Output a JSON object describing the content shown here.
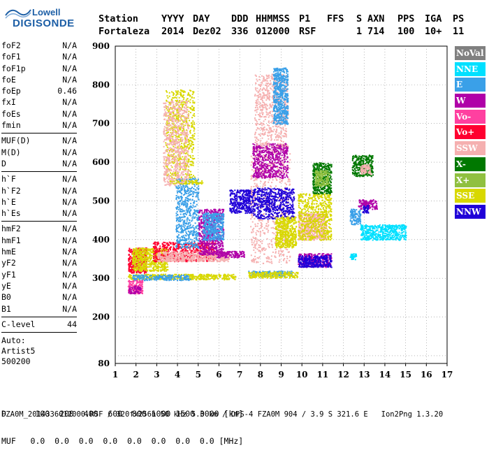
{
  "logo": {
    "line1": "Lowell",
    "line2": "DIGISONDE"
  },
  "header": {
    "labels": [
      "Station",
      "YYYY",
      "DAY",
      "DDD",
      "HHMMSS",
      "P1",
      "FFS",
      "S",
      "AXN",
      "PPS",
      "IGA",
      "PS"
    ],
    "values": [
      "Fortaleza",
      "2014",
      "Dez02",
      "336",
      "012000",
      "RSF",
      "",
      "1",
      "714",
      "100",
      "10+",
      "11"
    ]
  },
  "params_group1": [
    {
      "name": "foF2",
      "value": "N/A"
    },
    {
      "name": "foF1",
      "value": "N/A"
    },
    {
      "name": "foF1p",
      "value": "N/A"
    },
    {
      "name": "foE",
      "value": "N/A"
    },
    {
      "name": "foEp",
      "value": "0.46"
    },
    {
      "name": "fxI",
      "value": "N/A"
    },
    {
      "name": "foEs",
      "value": "N/A"
    },
    {
      "name": "fmin",
      "value": "N/A"
    }
  ],
  "params_group2": [
    {
      "name": "MUF(D)",
      "value": "N/A"
    },
    {
      "name": "M(D)",
      "value": "N/A"
    },
    {
      "name": "D",
      "value": "N/A"
    }
  ],
  "params_group3": [
    {
      "name": "h`F",
      "value": "N/A"
    },
    {
      "name": "h`F2",
      "value": "N/A"
    },
    {
      "name": "h`E",
      "value": "N/A"
    },
    {
      "name": "h`Es",
      "value": "N/A"
    }
  ],
  "params_group4": [
    {
      "name": "hmF2",
      "value": "N/A"
    },
    {
      "name": "hmF1",
      "value": "N/A"
    },
    {
      "name": "hmE",
      "value": "N/A"
    },
    {
      "name": "yF2",
      "value": "N/A"
    },
    {
      "name": "yF1",
      "value": "N/A"
    },
    {
      "name": "yE",
      "value": "N/A"
    },
    {
      "name": "B0",
      "value": "N/A"
    },
    {
      "name": "B1",
      "value": "N/A"
    }
  ],
  "clevel": {
    "name": "C-level",
    "value": "44"
  },
  "auto": {
    "line1": "Auto:",
    "line2": "Artist5",
    "line3": "500200"
  },
  "legend": [
    {
      "label": "NoVal",
      "color": "#808080"
    },
    {
      "label": "NNE",
      "color": "#00e0ff"
    },
    {
      "label": "E",
      "color": "#3aa0e8"
    },
    {
      "label": "W",
      "color": "#b000a8"
    },
    {
      "label": "Vo-",
      "color": "#ff40a0"
    },
    {
      "label": "Vo+",
      "color": "#ff0030"
    },
    {
      "label": "SSW",
      "color": "#f5b0b0"
    },
    {
      "label": "X-",
      "color": "#007800"
    },
    {
      "label": "X+",
      "color": "#90c040"
    },
    {
      "label": "SSE",
      "color": "#d8d800"
    },
    {
      "label": "NNW",
      "color": "#2000d8"
    }
  ],
  "footer": {
    "row1": "D      100  200  400  600  800 1000 1500 3000 [km]",
    "row2": "MUF   0.0  0.0  0.0  0.0  0.0  0.0  0.0  0.0 [MHz]",
    "row3": "FZA0M_2014336012000.RSF / 320fx256h 50 kHz 5.0 km / DPS-4 FZA0M 904 / 3.9 S 321.6 E   Ion2Png 1.3.20"
  },
  "chart_data": {
    "type": "scatter",
    "title": "",
    "xlabel": "",
    "ylabel": "",
    "xlim": [
      1,
      17
    ],
    "ylim": [
      80,
      900
    ],
    "xticks": [
      1,
      2,
      3,
      4,
      5,
      6,
      7,
      8,
      9,
      10,
      11,
      12,
      13,
      14,
      15,
      16,
      17
    ],
    "yticks": [
      80,
      200,
      300,
      400,
      500,
      600,
      700,
      800,
      900
    ],
    "grid": true,
    "clusters": [
      {
        "series": "SSE",
        "x": [
          1.6,
          6.8
        ],
        "y": [
          298,
          312
        ]
      },
      {
        "series": "E",
        "x": [
          1.8,
          4.6
        ],
        "y": [
          296,
          310
        ]
      },
      {
        "series": "E",
        "x": [
          7.4,
          9.5
        ],
        "y": [
          306,
          320
        ]
      },
      {
        "series": "SSE",
        "x": [
          7.4,
          9.8
        ],
        "y": [
          302,
          318
        ]
      },
      {
        "series": "Vo-",
        "x": [
          1.6,
          2.3
        ],
        "y": [
          262,
          296
        ]
      },
      {
        "series": "W",
        "x": [
          1.6,
          2.2
        ],
        "y": [
          262,
          282
        ]
      },
      {
        "series": "Vo+",
        "x": [
          1.6,
          2.5
        ],
        "y": [
          315,
          380
        ]
      },
      {
        "series": "SSE",
        "x": [
          1.8,
          3.5
        ],
        "y": [
          320,
          380
        ]
      },
      {
        "series": "Vo+",
        "x": [
          2.8,
          5.8
        ],
        "y": [
          345,
          395
        ]
      },
      {
        "series": "SSW",
        "x": [
          3.0,
          6.5
        ],
        "y": [
          345,
          370
        ]
      },
      {
        "series": "SSE",
        "x": [
          3.4,
          4.8
        ],
        "y": [
          560,
          790
        ]
      },
      {
        "series": "E",
        "x": [
          3.9,
          5.0
        ],
        "y": [
          380,
          560
        ]
      },
      {
        "series": "SSE",
        "x": [
          3.6,
          5.2
        ],
        "y": [
          545,
          555
        ]
      },
      {
        "series": "SSW",
        "x": [
          3.3,
          4.5
        ],
        "y": [
          540,
          760
        ]
      },
      {
        "series": "W",
        "x": [
          5.0,
          6.2
        ],
        "y": [
          360,
          480
        ]
      },
      {
        "series": "E",
        "x": [
          5.2,
          6.2
        ],
        "y": [
          400,
          470
        ]
      },
      {
        "series": "W",
        "x": [
          5.8,
          7.2
        ],
        "y": [
          355,
          372
        ]
      },
      {
        "series": "NNW",
        "x": [
          6.5,
          7.6
        ],
        "y": [
          470,
          530
        ]
      },
      {
        "series": "SSW",
        "x": [
          7.5,
          9.4
        ],
        "y": [
          340,
          640
        ]
      },
      {
        "series": "NNW",
        "x": [
          7.6,
          9.6
        ],
        "y": [
          455,
          535
        ]
      },
      {
        "series": "W",
        "x": [
          7.6,
          9.3
        ],
        "y": [
          560,
          650
        ]
      },
      {
        "series": "SSW",
        "x": [
          7.7,
          9.3
        ],
        "y": [
          640,
          830
        ]
      },
      {
        "series": "E",
        "x": [
          8.6,
          9.3
        ],
        "y": [
          700,
          845
        ]
      },
      {
        "series": "SSE",
        "x": [
          8.7,
          9.7
        ],
        "y": [
          380,
          460
        ]
      },
      {
        "series": "W",
        "x": [
          9.8,
          11.4
        ],
        "y": [
          330,
          365
        ]
      },
      {
        "series": "NNW",
        "x": [
          9.8,
          11.4
        ],
        "y": [
          330,
          360
        ]
      },
      {
        "series": "SSW",
        "x": [
          9.8,
          11.2
        ],
        "y": [
          400,
          470
        ]
      },
      {
        "series": "SSE",
        "x": [
          9.8,
          11.4
        ],
        "y": [
          400,
          520
        ]
      },
      {
        "series": "X-",
        "x": [
          10.5,
          11.4
        ],
        "y": [
          520,
          600
        ]
      },
      {
        "series": "X+",
        "x": [
          10.6,
          11.3
        ],
        "y": [
          540,
          580
        ]
      },
      {
        "series": "X-",
        "x": [
          12.4,
          13.4
        ],
        "y": [
          565,
          620
        ]
      },
      {
        "series": "SSW",
        "x": [
          12.8,
          13.3
        ],
        "y": [
          570,
          595
        ]
      },
      {
        "series": "W",
        "x": [
          12.7,
          13.6
        ],
        "y": [
          480,
          505
        ]
      },
      {
        "series": "E",
        "x": [
          12.3,
          12.8
        ],
        "y": [
          440,
          480
        ]
      },
      {
        "series": "NNE",
        "x": [
          12.8,
          15.0
        ],
        "y": [
          400,
          440
        ]
      },
      {
        "series": "NNE",
        "x": [
          12.3,
          12.6
        ],
        "y": [
          350,
          365
        ]
      },
      {
        "series": "NNW",
        "x": [
          12.9,
          13.2
        ],
        "y": [
          470,
          490
        ]
      }
    ]
  }
}
